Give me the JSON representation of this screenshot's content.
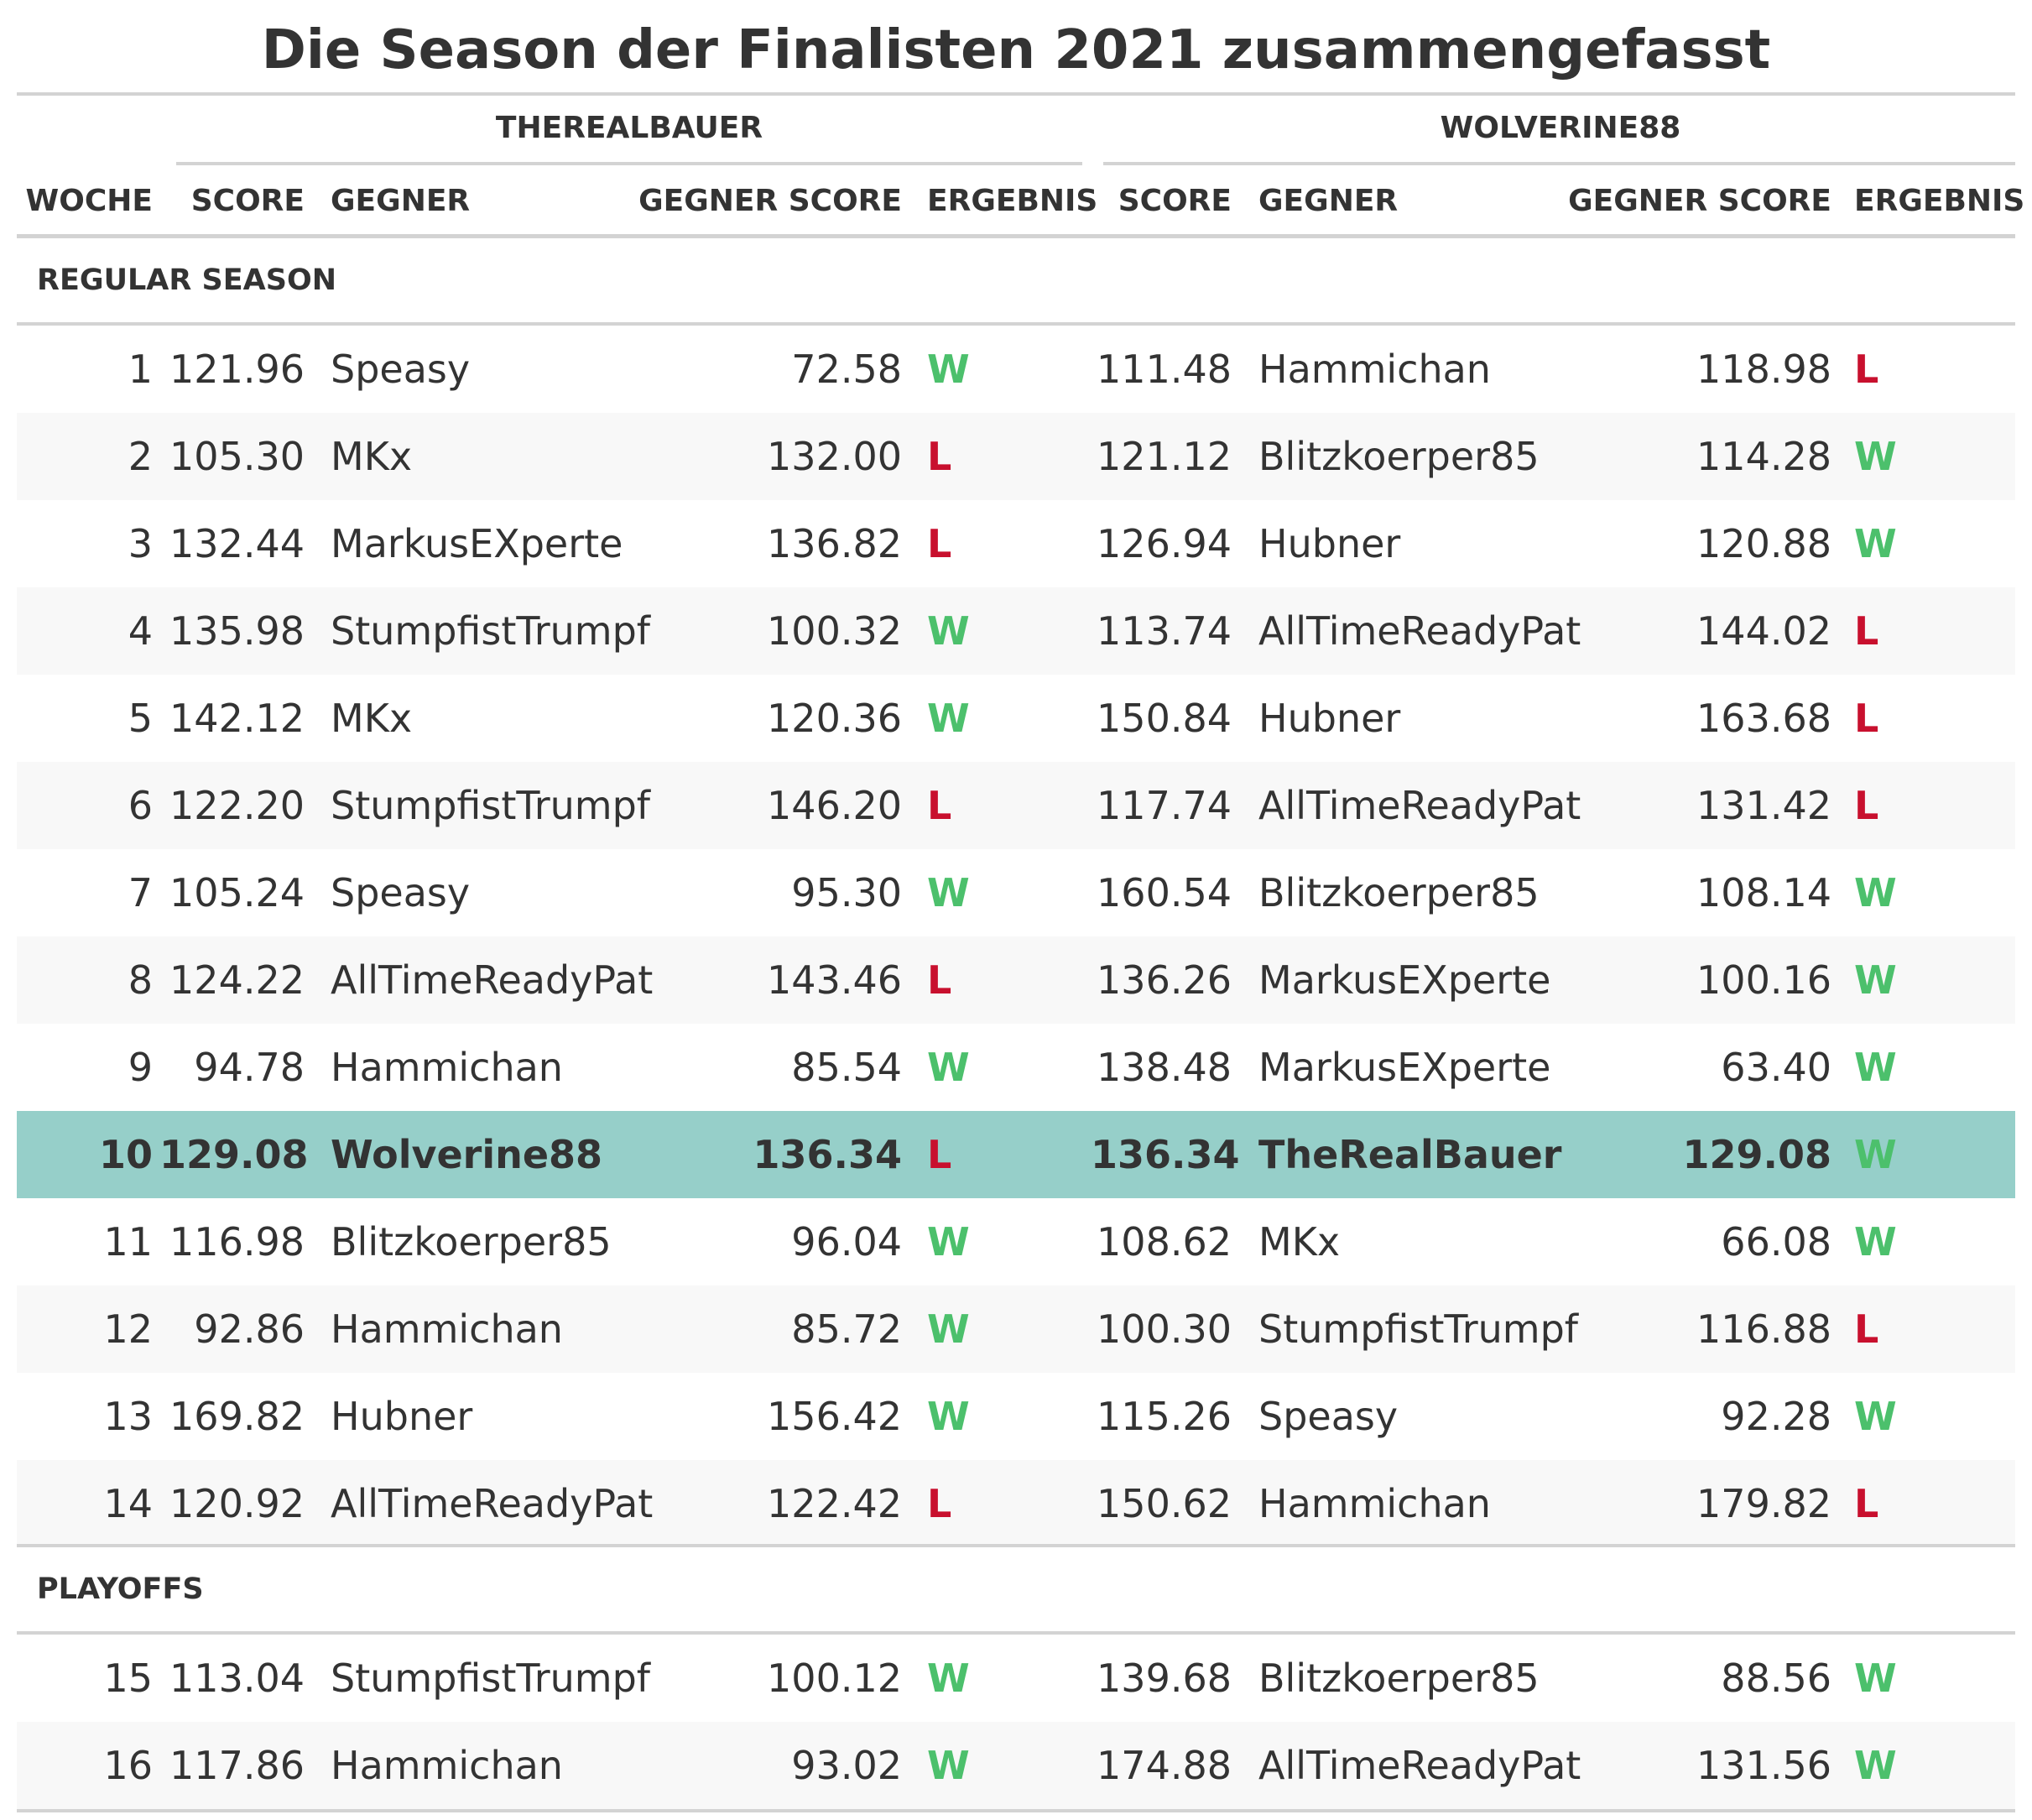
{
  "title": "Die Season der Finalisten 2021 zusammengefasst",
  "spanners": [
    "THEREALBAUER",
    "WOLVERINE88"
  ],
  "columns": {
    "woche": "WOCHE",
    "score": "SCORE",
    "gegner": "GEGNER",
    "gegner_score": "GEGNER SCORE",
    "ergebnis": "ERGEBNIS"
  },
  "colors": {
    "win": "#4cc06c",
    "loss": "#c8102e",
    "highlight": "#96cfc9",
    "stripe": "#f8f8f8"
  },
  "groups": [
    {
      "label": "REGULAR SEASON",
      "rows": [
        {
          "woche": "1",
          "a_score": "121.96",
          "a_gegner": "Speasy",
          "a_gscore": "72.58",
          "a_erg": "W",
          "b_score": "111.48",
          "b_gegner": "Hammichan",
          "b_gscore": "118.98",
          "b_erg": "L"
        },
        {
          "woche": "2",
          "a_score": "105.30",
          "a_gegner": "MKx",
          "a_gscore": "132.00",
          "a_erg": "L",
          "b_score": "121.12",
          "b_gegner": "Blitzkoerper85",
          "b_gscore": "114.28",
          "b_erg": "W"
        },
        {
          "woche": "3",
          "a_score": "132.44",
          "a_gegner": "MarkusEXperte",
          "a_gscore": "136.82",
          "a_erg": "L",
          "b_score": "126.94",
          "b_gegner": "Hubner",
          "b_gscore": "120.88",
          "b_erg": "W"
        },
        {
          "woche": "4",
          "a_score": "135.98",
          "a_gegner": "StumpfistTrumpf",
          "a_gscore": "100.32",
          "a_erg": "W",
          "b_score": "113.74",
          "b_gegner": "AllTimeReadyPat",
          "b_gscore": "144.02",
          "b_erg": "L"
        },
        {
          "woche": "5",
          "a_score": "142.12",
          "a_gegner": "MKx",
          "a_gscore": "120.36",
          "a_erg": "W",
          "b_score": "150.84",
          "b_gegner": "Hubner",
          "b_gscore": "163.68",
          "b_erg": "L"
        },
        {
          "woche": "6",
          "a_score": "122.20",
          "a_gegner": "StumpfistTrumpf",
          "a_gscore": "146.20",
          "a_erg": "L",
          "b_score": "117.74",
          "b_gegner": "AllTimeReadyPat",
          "b_gscore": "131.42",
          "b_erg": "L"
        },
        {
          "woche": "7",
          "a_score": "105.24",
          "a_gegner": "Speasy",
          "a_gscore": "95.30",
          "a_erg": "W",
          "b_score": "160.54",
          "b_gegner": "Blitzkoerper85",
          "b_gscore": "108.14",
          "b_erg": "W"
        },
        {
          "woche": "8",
          "a_score": "124.22",
          "a_gegner": "AllTimeReadyPat",
          "a_gscore": "143.46",
          "a_erg": "L",
          "b_score": "136.26",
          "b_gegner": "MarkusEXperte",
          "b_gscore": "100.16",
          "b_erg": "W"
        },
        {
          "woche": "9",
          "a_score": "94.78",
          "a_gegner": "Hammichan",
          "a_gscore": "85.54",
          "a_erg": "W",
          "b_score": "138.48",
          "b_gegner": "MarkusEXperte",
          "b_gscore": "63.40",
          "b_erg": "W"
        },
        {
          "woche": "10",
          "a_score": "129.08",
          "a_gegner": "Wolverine88",
          "a_gscore": "136.34",
          "a_erg": "L",
          "b_score": "136.34",
          "b_gegner": "TheRealBauer",
          "b_gscore": "129.08",
          "b_erg": "W",
          "highlight": true
        },
        {
          "woche": "11",
          "a_score": "116.98",
          "a_gegner": "Blitzkoerper85",
          "a_gscore": "96.04",
          "a_erg": "W",
          "b_score": "108.62",
          "b_gegner": "MKx",
          "b_gscore": "66.08",
          "b_erg": "W"
        },
        {
          "woche": "12",
          "a_score": "92.86",
          "a_gegner": "Hammichan",
          "a_gscore": "85.72",
          "a_erg": "W",
          "b_score": "100.30",
          "b_gegner": "StumpfistTrumpf",
          "b_gscore": "116.88",
          "b_erg": "L"
        },
        {
          "woche": "13",
          "a_score": "169.82",
          "a_gegner": "Hubner",
          "a_gscore": "156.42",
          "a_erg": "W",
          "b_score": "115.26",
          "b_gegner": "Speasy",
          "b_gscore": "92.28",
          "b_erg": "W"
        },
        {
          "woche": "14",
          "a_score": "120.92",
          "a_gegner": "AllTimeReadyPat",
          "a_gscore": "122.42",
          "a_erg": "L",
          "b_score": "150.62",
          "b_gegner": "Hammichan",
          "b_gscore": "179.82",
          "b_erg": "L"
        }
      ]
    },
    {
      "label": "PLAYOFFS",
      "rows": [
        {
          "woche": "15",
          "a_score": "113.04",
          "a_gegner": "StumpfistTrumpf",
          "a_gscore": "100.12",
          "a_erg": "W",
          "b_score": "139.68",
          "b_gegner": "Blitzkoerper85",
          "b_gscore": "88.56",
          "b_erg": "W"
        },
        {
          "woche": "16",
          "a_score": "117.86",
          "a_gegner": "Hammichan",
          "a_gscore": "93.02",
          "a_erg": "W",
          "b_score": "174.88",
          "b_gegner": "AllTimeReadyPat",
          "b_gscore": "131.56",
          "b_erg": "W"
        }
      ]
    }
  ]
}
